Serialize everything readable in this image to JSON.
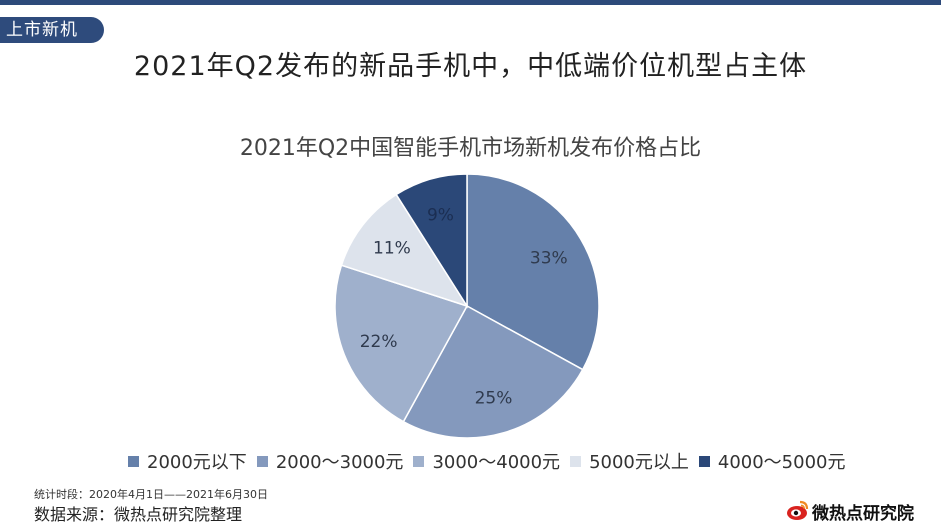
{
  "header": {
    "section_tab": "上市新机",
    "main_title": "2021年Q2发布的新品手机中，中低端价位机型占主体"
  },
  "chart_data": {
    "type": "pie",
    "title": "2021年Q2中国智能手机市场新机发布价格占比",
    "slices": [
      {
        "label": "2000元以下",
        "value": 33,
        "display": "33%",
        "color": "#6580aa"
      },
      {
        "label": "2000～3000元",
        "value": 25,
        "display": "25%",
        "color": "#8499bd"
      },
      {
        "label": "3000～4000元",
        "value": 22,
        "display": "22%",
        "color": "#9fb0cc"
      },
      {
        "label": "5000元以上",
        "value": 11,
        "display": "11%",
        "color": "#dde3ec"
      },
      {
        "label": "4000～5000元",
        "value": 9,
        "display": "9%",
        "color": "#2b4878"
      }
    ],
    "legend_position": "bottom"
  },
  "footer": {
    "footnote": "统计时段：2020年4月1日——2021年6月30日",
    "source": "数据来源：微热点研究院整理",
    "brand_name": "微热点研究院",
    "brand_color": "#d9231f"
  }
}
